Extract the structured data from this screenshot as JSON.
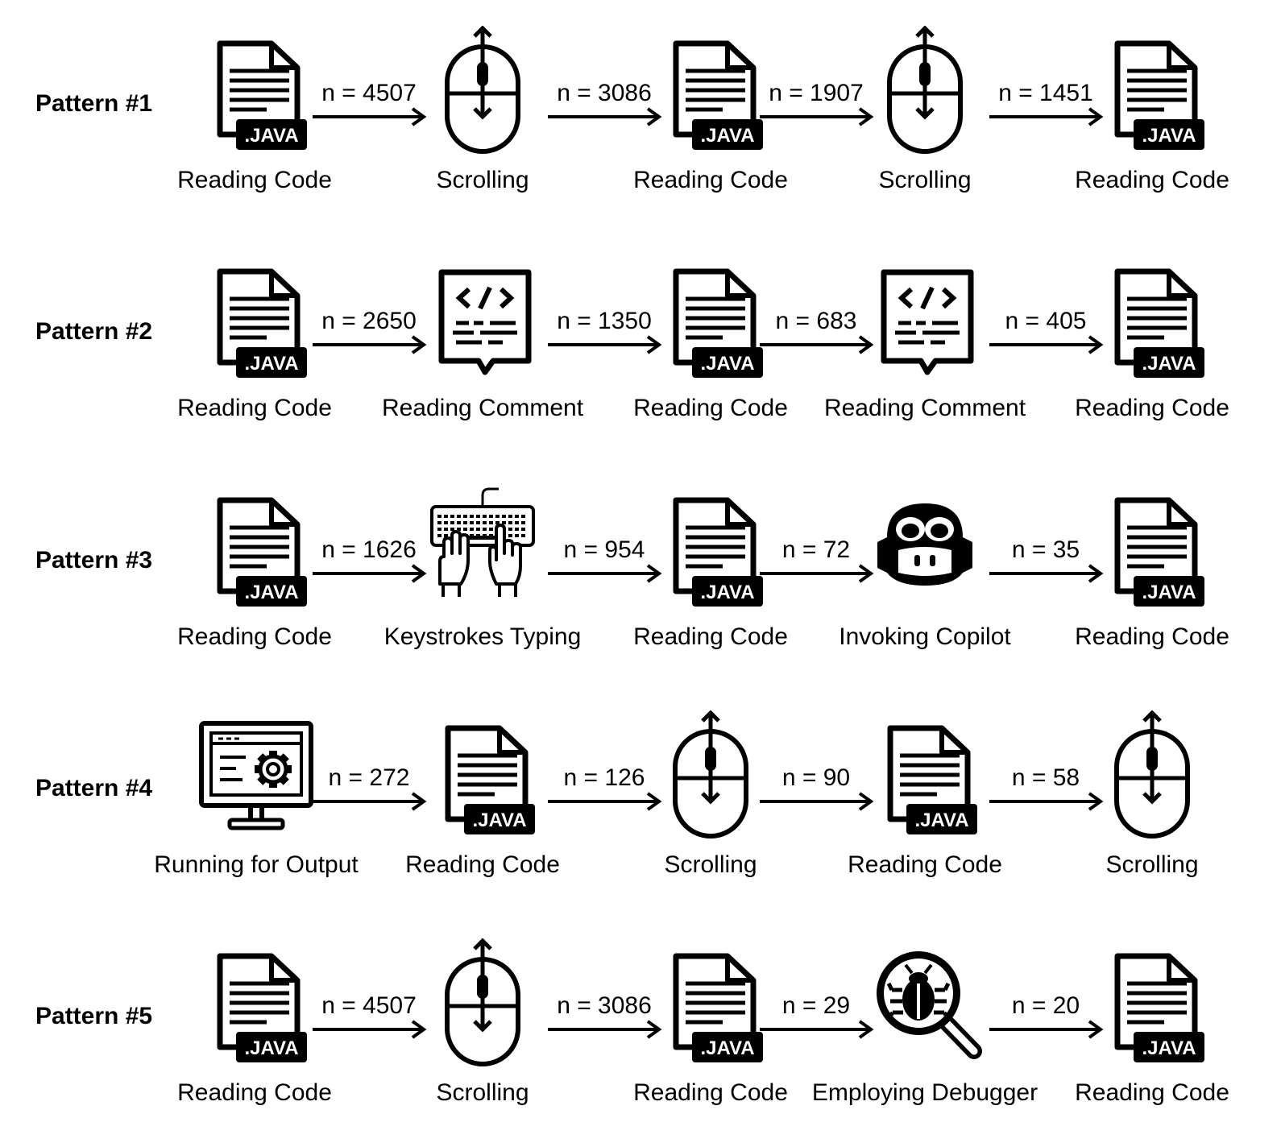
{
  "patterns": [
    {
      "label": "Pattern #1",
      "nodes": [
        {
          "icon": "java-file-icon",
          "caption": "Reading Code"
        },
        {
          "icon": "mouse-scroll-icon",
          "caption": "Scrolling"
        },
        {
          "icon": "java-file-icon",
          "caption": "Reading Code"
        },
        {
          "icon": "mouse-scroll-icon",
          "caption": "Scrolling"
        },
        {
          "icon": "java-file-icon",
          "caption": "Reading Code"
        }
      ],
      "transitions": [
        "n = 4507",
        "n = 3086",
        "n = 1907",
        "n = 1451"
      ]
    },
    {
      "label": "Pattern #2",
      "nodes": [
        {
          "icon": "java-file-icon",
          "caption": "Reading Code"
        },
        {
          "icon": "code-comment-icon",
          "caption": "Reading Comment"
        },
        {
          "icon": "java-file-icon",
          "caption": "Reading Code"
        },
        {
          "icon": "code-comment-icon",
          "caption": "Reading Comment"
        },
        {
          "icon": "java-file-icon",
          "caption": "Reading Code"
        }
      ],
      "transitions": [
        "n = 2650",
        "n = 1350",
        "n = 683",
        "n = 405"
      ]
    },
    {
      "label": "Pattern #3",
      "nodes": [
        {
          "icon": "java-file-icon",
          "caption": "Reading Code"
        },
        {
          "icon": "keyboard-typing-icon",
          "caption": "Keystrokes Typing"
        },
        {
          "icon": "java-file-icon",
          "caption": "Reading Code"
        },
        {
          "icon": "copilot-icon",
          "caption": "Invoking Copilot"
        },
        {
          "icon": "java-file-icon",
          "caption": "Reading Code"
        }
      ],
      "transitions": [
        "n = 1626",
        "n = 954",
        "n = 72",
        "n = 35"
      ]
    },
    {
      "label": "Pattern #4",
      "nodes": [
        {
          "icon": "monitor-gear-icon",
          "caption": "Running for Output"
        },
        {
          "icon": "java-file-icon",
          "caption": "Reading Code"
        },
        {
          "icon": "mouse-scroll-icon",
          "caption": "Scrolling"
        },
        {
          "icon": "java-file-icon",
          "caption": "Reading Code"
        },
        {
          "icon": "mouse-scroll-icon",
          "caption": "Scrolling"
        }
      ],
      "transitions": [
        "n = 272",
        "n = 126",
        "n = 90",
        "n = 58"
      ]
    },
    {
      "label": "Pattern #5",
      "nodes": [
        {
          "icon": "java-file-icon",
          "caption": "Reading Code"
        },
        {
          "icon": "mouse-scroll-icon",
          "caption": "Scrolling"
        },
        {
          "icon": "java-file-icon",
          "caption": "Reading Code"
        },
        {
          "icon": "debugger-bug-icon",
          "caption": "Employing Debugger"
        },
        {
          "icon": "java-file-icon",
          "caption": "Reading Code"
        }
      ],
      "transitions": [
        "n = 4507",
        "n = 3086",
        "n = 29",
        "n = 20"
      ]
    }
  ],
  "java_badge_text": ".JAVA"
}
